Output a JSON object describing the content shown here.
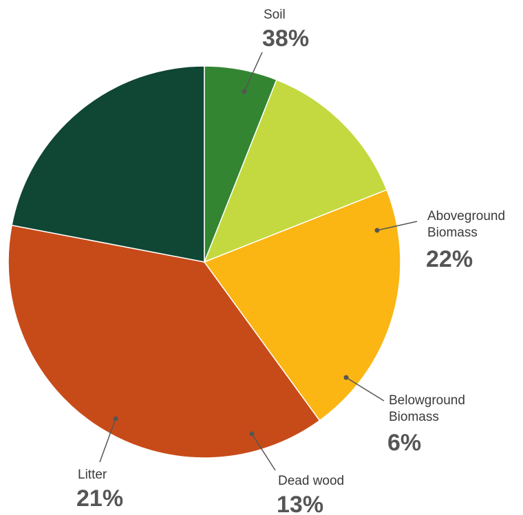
{
  "chart_data": {
    "type": "pie",
    "title": "",
    "unit": "%",
    "slices": [
      {
        "name_lines": [
          "Soil"
        ],
        "value": 38,
        "label": "38%",
        "color": "#c74b18"
      },
      {
        "name_lines": [
          "Aboveground",
          "Biomass"
        ],
        "value": 22,
        "label": "22%",
        "color": "#0f4634"
      },
      {
        "name_lines": [
          "Belowground",
          "Biomass"
        ],
        "value": 6,
        "label": "6%",
        "color": "#338532"
      },
      {
        "name_lines": [
          "Dead wood"
        ],
        "value": 13,
        "label": "13%",
        "color": "#c3d93f"
      },
      {
        "name_lines": [
          "Litter"
        ],
        "value": 21,
        "label": "21%",
        "color": "#fbb614"
      }
    ]
  }
}
